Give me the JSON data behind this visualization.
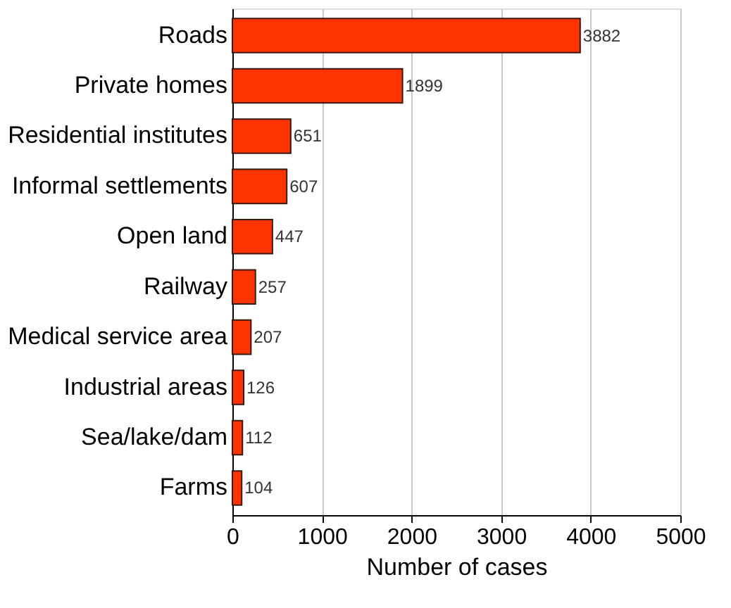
{
  "chart_data": {
    "type": "bar",
    "orientation": "horizontal",
    "xlabel": "Number of cases",
    "categories": [
      "Roads",
      "Private homes",
      "Residential institutes",
      "Informal settlements",
      "Open land",
      "Railway",
      "Medical service area",
      "Industrial areas",
      "Sea/lake/dam",
      "Farms"
    ],
    "values": [
      3882,
      1899,
      651,
      607,
      447,
      257,
      207,
      126,
      112,
      104
    ],
    "color": "#ff3300",
    "xlim": [
      0,
      5000
    ],
    "xticks": [
      0,
      1000,
      2000,
      3000,
      4000,
      5000
    ],
    "grid": "x",
    "data_labels": true
  }
}
